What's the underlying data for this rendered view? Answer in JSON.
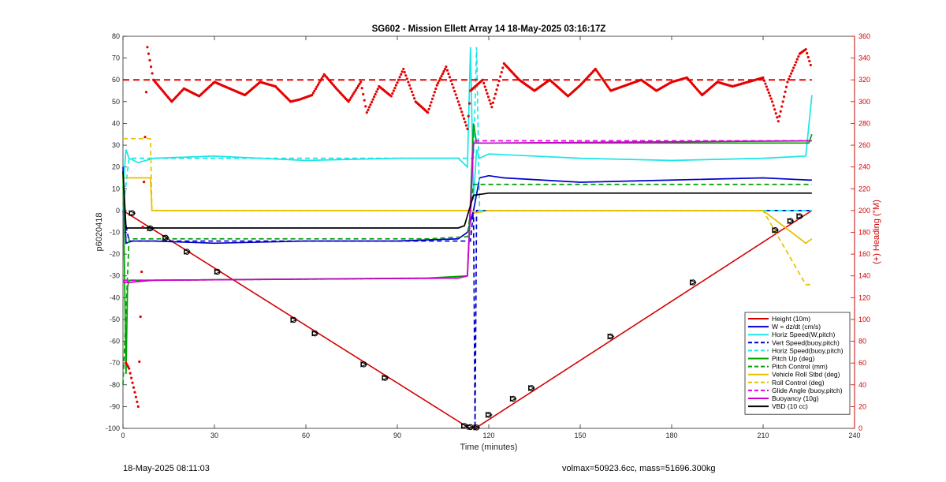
{
  "chart_data": {
    "type": "line",
    "title": "SG602 - Mission Ellett Array 14 18-May-2025 03:16:17Z",
    "xlabel": "Time (minutes)",
    "ylabel": "p6020418",
    "ylabel_right": "(+) Heading (°M)",
    "xlim": [
      0,
      240
    ],
    "ylim": [
      -100,
      80
    ],
    "ylim_right": [
      0,
      360
    ],
    "xticks": [
      "0",
      "30",
      "60",
      "90",
      "120",
      "150",
      "180",
      "210",
      "240"
    ],
    "yticks": [
      "80",
      "70",
      "60",
      "50",
      "40",
      "30",
      "20",
      "10",
      "0",
      "-10",
      "-20",
      "-30",
      "-40",
      "-50",
      "-60",
      "-70",
      "-80",
      "-90",
      "-100"
    ],
    "yticks_right": [
      "360",
      "340",
      "320",
      "300",
      "280",
      "260",
      "240",
      "220",
      "200",
      "180",
      "160",
      "140",
      "120",
      "100",
      "80",
      "60",
      "40",
      "20",
      "0"
    ],
    "grid": false,
    "legend_position": "bottom-right",
    "colors": {
      "height": "#d40000",
      "w": "#0000cc",
      "horiz": "#19e6e6",
      "pitch": "#00a000",
      "roll": "#e6c000",
      "glide": "#e600e6",
      "buoy": "#cc00cc",
      "vbd": "#000000",
      "heading": "#e60000"
    },
    "series": [
      {
        "name": "Height (10m)",
        "color": "#d40000",
        "style": "solid",
        "x": [
          0,
          112,
          113,
          116,
          226
        ],
        "y": [
          0,
          -98.5,
          -99.6,
          -99.6,
          0
        ]
      },
      {
        "name": "W = dz/dt (cm/s)",
        "color": "#0000cc",
        "style": "solid",
        "x": [
          0,
          1,
          3,
          10,
          30,
          60,
          90,
          110,
          113,
          115,
          117,
          120,
          125,
          150,
          180,
          210,
          225,
          226
        ],
        "y": [
          20,
          -15,
          -14,
          -14,
          -15,
          -14,
          -14,
          -13,
          -10,
          0,
          15,
          16,
          15,
          13,
          14,
          15,
          14,
          14
        ]
      },
      {
        "name": "Horiz Speed(W,pitch)",
        "color": "#19e6e6",
        "style": "solid",
        "x": [
          0,
          1,
          2,
          5,
          10,
          30,
          60,
          90,
          110,
          113,
          114,
          115,
          116,
          117,
          120,
          150,
          180,
          210,
          224,
          226
        ],
        "y": [
          10,
          28,
          24,
          22,
          24,
          25,
          23,
          24,
          24,
          20,
          75,
          5,
          28,
          24,
          26,
          24,
          23,
          24,
          25,
          53
        ]
      },
      {
        "name": "Vert Speed(buoy,pitch)",
        "color": "#0000cc",
        "style": "dashed",
        "x": [
          0,
          2,
          10,
          110,
          114,
          115,
          115.5,
          116,
          120,
          226
        ],
        "y": [
          0,
          -14,
          -14,
          -14,
          -14,
          0,
          -100,
          0,
          0,
          0
        ]
      },
      {
        "name": "Horiz Speed(buoy,pitch)",
        "color": "#19e6e6",
        "style": "dashed",
        "x": [
          0,
          2,
          10,
          110,
          115,
          116,
          117,
          120,
          226
        ],
        "y": [
          0,
          24,
          24,
          24,
          24,
          75,
          0,
          0,
          0
        ]
      },
      {
        "name": "Pitch Up (deg)",
        "color": "#00a000",
        "style": "solid",
        "x": [
          0,
          1,
          1.5,
          2,
          10,
          100,
          113,
          114,
          115,
          116,
          120,
          150,
          200,
          225,
          226
        ],
        "y": [
          18,
          -75,
          -35,
          -32,
          -32,
          -31,
          -30,
          5,
          40,
          31,
          31,
          31,
          31,
          31,
          35
        ]
      },
      {
        "name": "Pitch Control (mm)",
        "color": "#00a000",
        "style": "dashed",
        "x": [
          0,
          2,
          10,
          100,
          113,
          115,
          120,
          226
        ],
        "y": [
          -80,
          -13,
          -13,
          -13,
          -12,
          12,
          12,
          12
        ]
      },
      {
        "name": "Vehicle Roll Stbd (deg)",
        "color": "#e6c000",
        "style": "solid",
        "x": [
          0,
          2,
          9,
          9.5,
          30,
          60,
          90,
          112,
          114,
          116,
          120,
          150,
          180,
          210,
          224,
          226
        ],
        "y": [
          15,
          15,
          15,
          0,
          0,
          0,
          0,
          0,
          0,
          -1,
          0,
          0,
          0,
          0,
          -15,
          -13
        ]
      },
      {
        "name": "Roll Control (deg)",
        "color": "#e6c000",
        "style": "dashed",
        "x": [
          0,
          2,
          9,
          9.5,
          30,
          60,
          90,
          112,
          114,
          116,
          120,
          150,
          180,
          210,
          224,
          226
        ],
        "y": [
          33,
          33,
          33,
          0,
          0,
          0,
          0,
          0,
          0,
          -1,
          0,
          0,
          0,
          0,
          -34,
          -34
        ]
      },
      {
        "name": "Glide Angle (buoy,pitch)",
        "color": "#e600e6",
        "style": "dashed",
        "x": [
          0,
          2,
          10,
          110,
          113,
          115,
          120,
          226
        ],
        "y": [
          -32,
          -32,
          -32,
          -31,
          -30,
          32,
          32,
          32
        ]
      },
      {
        "name": "Buoyancy (10g)",
        "color": "#cc00cc",
        "style": "solid",
        "x": [
          0,
          2,
          10,
          110,
          113,
          115,
          120,
          226
        ],
        "y": [
          -33,
          -33,
          -32,
          -31,
          -30,
          31,
          31,
          32
        ]
      },
      {
        "name": "VBD (10 cc)",
        "color": "#000000",
        "style": "solid",
        "x": [
          0,
          1,
          10,
          110,
          112,
          115,
          120,
          150,
          226
        ],
        "y": [
          18,
          -8,
          -8,
          -8,
          -7,
          7,
          8,
          8,
          8
        ]
      }
    ],
    "heading": {
      "name": "(+) Heading (°M)",
      "color": "#e60000",
      "reference_value": 320,
      "x": [
        1,
        2,
        5,
        8,
        10,
        13,
        16,
        20,
        25,
        30,
        35,
        40,
        45,
        50,
        55,
        58,
        62,
        66,
        70,
        74,
        78,
        80,
        84,
        88,
        92,
        96,
        100,
        103,
        106,
        110,
        113,
        114,
        118,
        121,
        125,
        130,
        135,
        140,
        146,
        150,
        155,
        160,
        165,
        170,
        175,
        180,
        185,
        190,
        195,
        200,
        205,
        210,
        213,
        215,
        218,
        222,
        224,
        226
      ],
      "y": [
        60,
        55,
        20,
        350,
        320,
        310,
        300,
        312,
        305,
        318,
        312,
        306,
        318,
        314,
        300,
        302,
        306,
        325,
        312,
        300,
        318,
        290,
        314,
        305,
        330,
        300,
        290,
        315,
        332,
        300,
        275,
        310,
        320,
        295,
        335,
        320,
        310,
        320,
        305,
        315,
        330,
        310,
        315,
        320,
        310,
        318,
        322,
        306,
        318,
        314,
        318,
        322,
        300,
        282,
        318,
        344,
        348,
        330
      ]
    },
    "markers": {
      "shape": "triangle-circle",
      "x": [
        3,
        9,
        14,
        21,
        31,
        56,
        63,
        79,
        86,
        112,
        114,
        116,
        120,
        128,
        134,
        160,
        187,
        214,
        219,
        222
      ],
      "y": [
        -1.2,
        -8.2,
        -12.5,
        -18.9,
        -28.1,
        -50.2,
        -56.4,
        -70.6,
        -76.8,
        -98.9,
        -99.4,
        -99.6,
        -93.8,
        -86.4,
        -81.5,
        -57.8,
        -33,
        -9,
        -4.8,
        -2.6
      ]
    }
  },
  "footer": {
    "left": "18-May-2025 08:11:03",
    "right": "volmax=50923.6cc, mass=51696.300kg"
  }
}
